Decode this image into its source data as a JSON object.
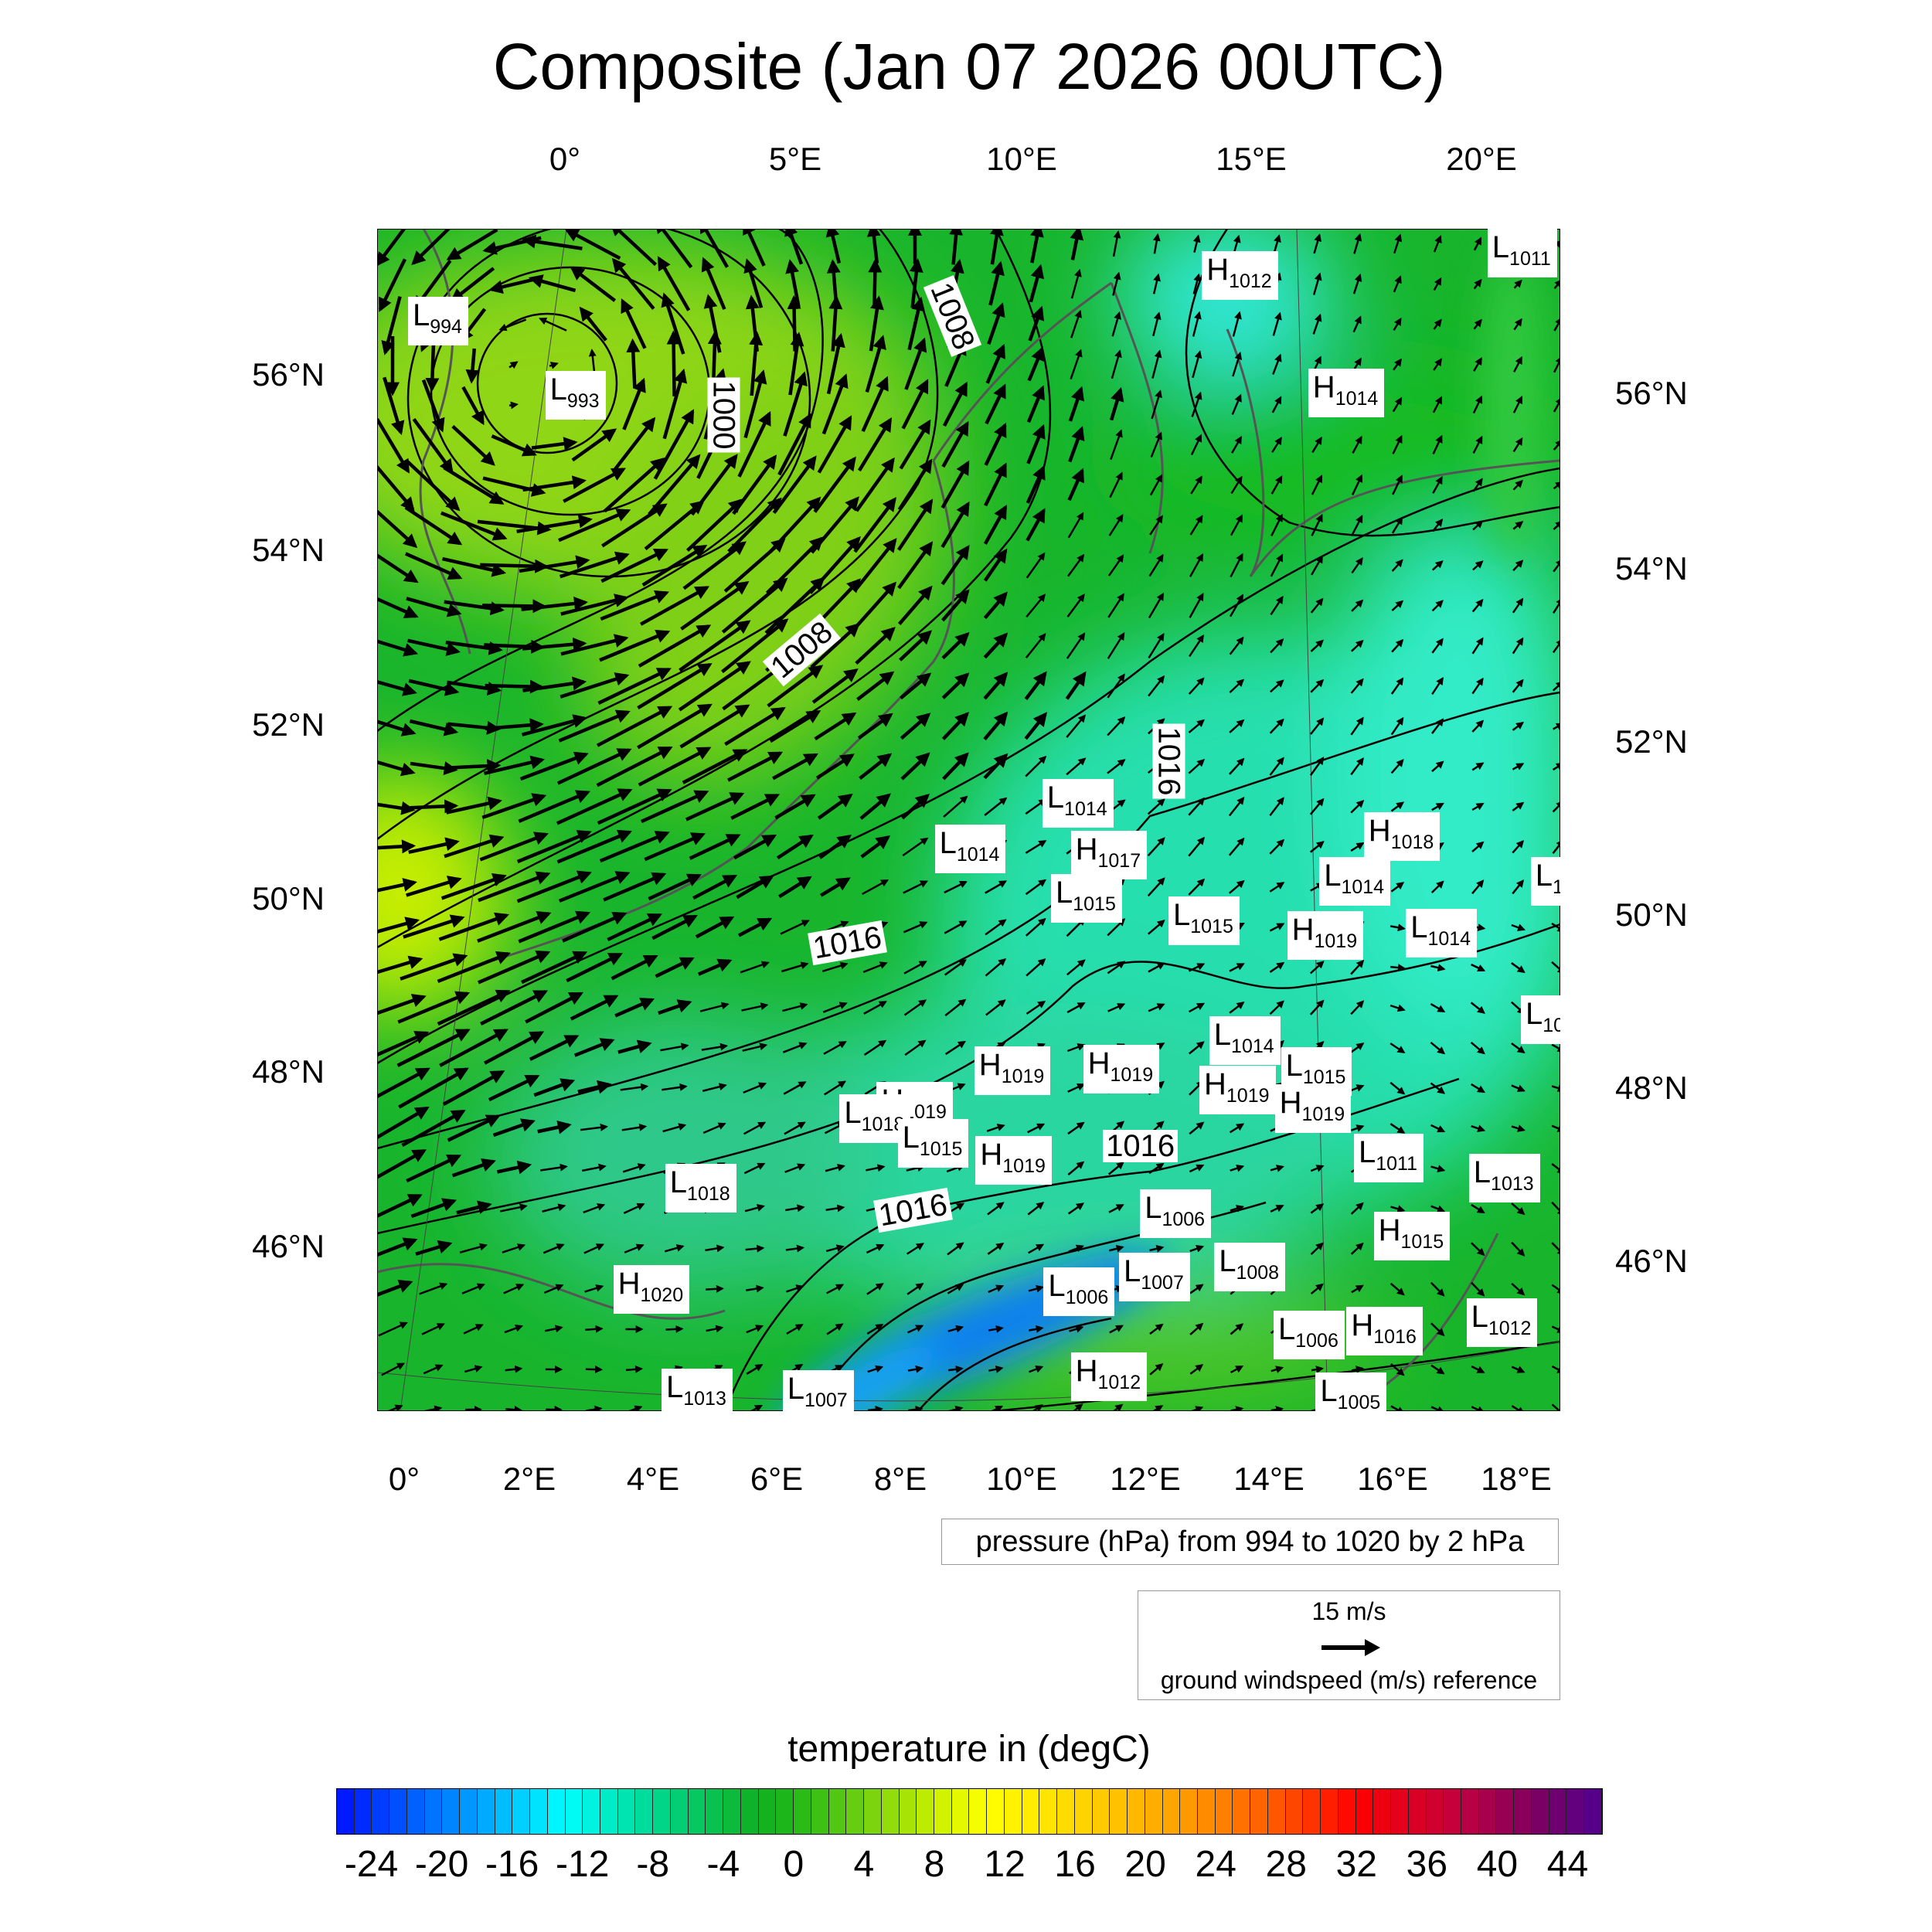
{
  "title": "Composite (Jan 07 2026 00UTC)",
  "chart_data": {
    "type": "heatmap",
    "title": "Composite (Jan 07 2026 00UTC)",
    "fields": [
      "temperature (degC) shaded",
      "pressure (hPa) contours",
      "ground windspeed vectors"
    ],
    "axes": {
      "top_ticks": [
        "0°",
        "5°E",
        "10°E",
        "15°E",
        "20°E"
      ],
      "bottom_ticks": [
        "0°",
        "2°E",
        "4°E",
        "6°E",
        "8°E",
        "10°E",
        "12°E",
        "14°E",
        "16°E",
        "18°E"
      ],
      "left_ticks": [
        "56°N",
        "54°N",
        "52°N",
        "50°N",
        "48°N",
        "46°N"
      ],
      "right_ticks": [
        "56°N",
        "54°N",
        "52°N",
        "50°N",
        "48°N",
        "46°N"
      ]
    },
    "pressure_contours": {
      "label": "pressure (hPa) from 994 to 1020 by 2 hPa",
      "min": 994,
      "max": 1020,
      "step": 2,
      "line_labels": [
        "1008",
        "1000",
        "1008",
        "1016",
        "1016",
        "1016",
        "1016"
      ]
    },
    "pressure_centers": [
      {
        "type": "L",
        "value": "994"
      },
      {
        "type": "L",
        "value": "993"
      },
      {
        "type": "L",
        "value": "1011"
      },
      {
        "type": "H",
        "value": "1012"
      },
      {
        "type": "H",
        "value": "1014"
      },
      {
        "type": "L",
        "value": "1014"
      },
      {
        "type": "L",
        "value": "1014"
      },
      {
        "type": "H",
        "value": "1017"
      },
      {
        "type": "H",
        "value": "1018"
      },
      {
        "type": "L",
        "value": "1014"
      },
      {
        "type": "L",
        "value": "1015"
      },
      {
        "type": "L",
        "value": "1015"
      },
      {
        "type": "H",
        "value": "1019"
      },
      {
        "type": "L",
        "value": "1014"
      },
      {
        "type": "L",
        "value": "1"
      },
      {
        "type": "L",
        "value": "10"
      },
      {
        "type": "L",
        "value": "1014"
      },
      {
        "type": "L",
        "value": "1015"
      },
      {
        "type": "H",
        "value": "1019"
      },
      {
        "type": "H",
        "value": "1019"
      },
      {
        "type": "H",
        "value": "1019"
      },
      {
        "type": "H",
        "value": "1019"
      },
      {
        "type": "H",
        "value": "1019"
      },
      {
        "type": "L",
        "value": "1018"
      },
      {
        "type": "L",
        "value": "1015"
      },
      {
        "type": "H",
        "value": "1019"
      },
      {
        "type": "L",
        "value": "1011"
      },
      {
        "type": "L",
        "value": "1013"
      },
      {
        "type": "L",
        "value": "1018"
      },
      {
        "type": "L",
        "value": "1006"
      },
      {
        "type": "H",
        "value": "1015"
      },
      {
        "type": "L",
        "value": "1008"
      },
      {
        "type": "L",
        "value": "1007"
      },
      {
        "type": "L",
        "value": "1006"
      },
      {
        "type": "H",
        "value": "1020"
      },
      {
        "type": "L",
        "value": "1012"
      },
      {
        "type": "L",
        "value": "1006"
      },
      {
        "type": "H",
        "value": "1016"
      },
      {
        "type": "H",
        "value": "1012"
      },
      {
        "type": "L",
        "value": "1013"
      },
      {
        "type": "L",
        "value": "1007"
      },
      {
        "type": "L",
        "value": "1005"
      }
    ],
    "wind_reference": {
      "speed": "15 m/s",
      "label": "ground windspeed (m/s) reference"
    },
    "colorbar": {
      "title": "temperature in (degC)",
      "min": -26,
      "max": 46,
      "step": 1,
      "tick_labels": [
        "-24",
        "-20",
        "-16",
        "-12",
        "-8",
        "-4",
        "0",
        "4",
        "8",
        "12",
        "16",
        "20",
        "24",
        "28",
        "32",
        "36",
        "40",
        "44"
      ]
    }
  }
}
